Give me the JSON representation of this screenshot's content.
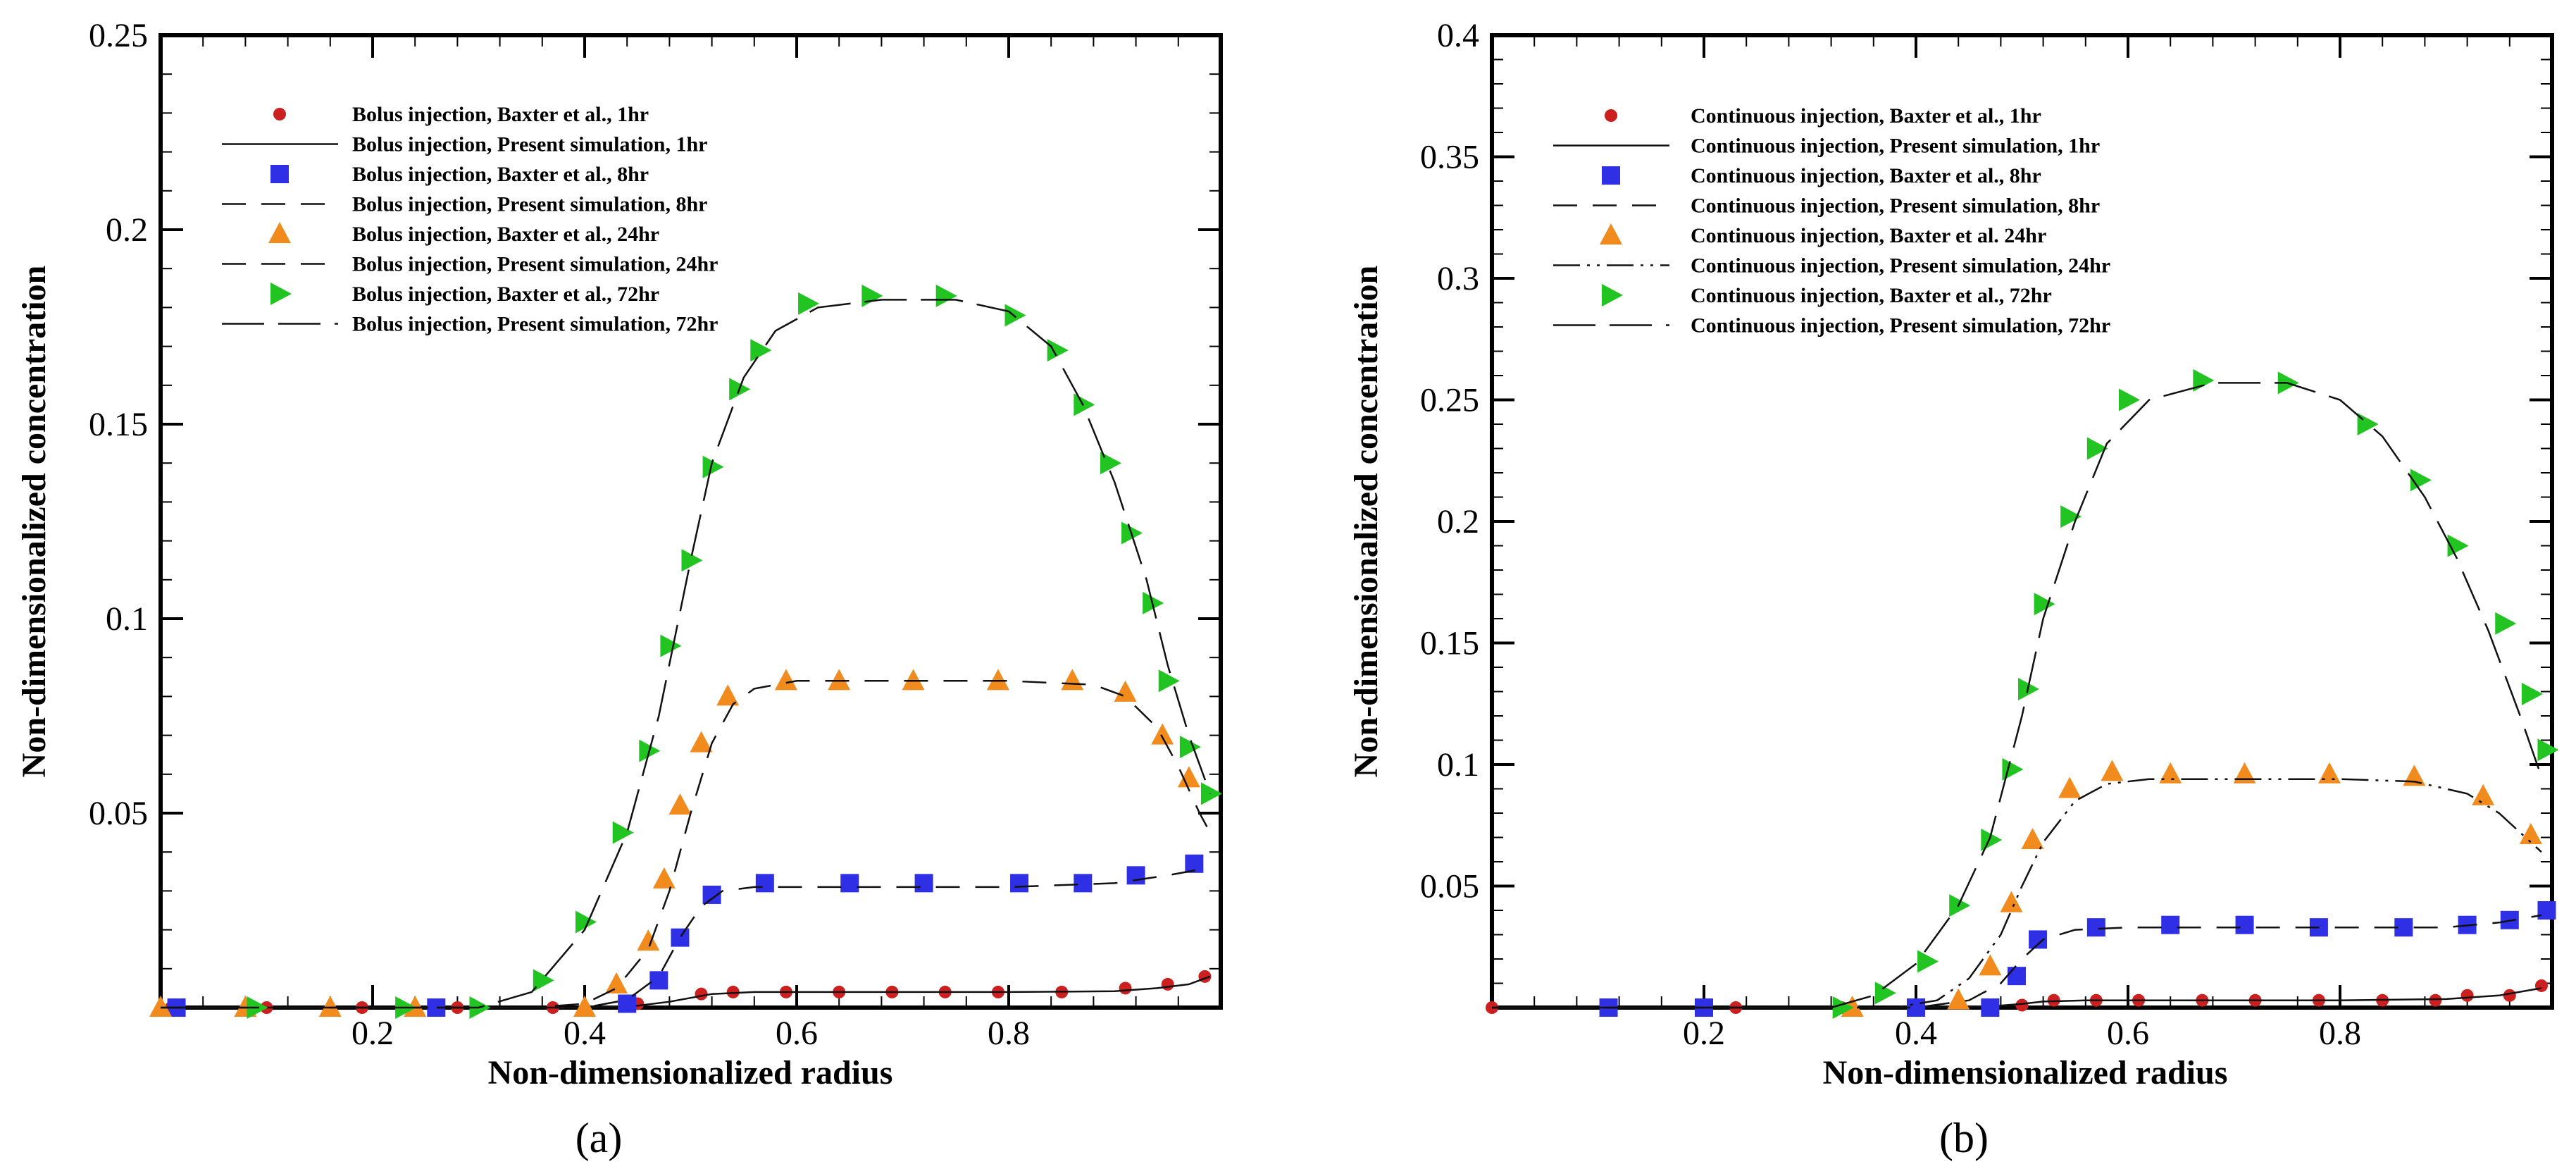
{
  "chart_data": [
    {
      "type": "scatter",
      "panel_label": "(a)",
      "xlabel": "Non-dimensionalized radius",
      "ylabel": "Non-dimensionalized concentration",
      "xlim": [
        0,
        1
      ],
      "ylim": [
        0,
        0.25
      ],
      "xticks": [
        0.2,
        0.4,
        0.6,
        0.8
      ],
      "xtick_labels": [
        "0.2",
        "0.4",
        "0.6",
        "0.8"
      ],
      "yticks": [
        0.05,
        0.1,
        0.15,
        0.2,
        0.25
      ],
      "ytick_labels": [
        "0.05",
        "0.1",
        "0.15",
        "0.2",
        "0.25"
      ],
      "grid": false,
      "legend_position": "top-left",
      "series": [
        {
          "name": "Bolus injection, Baxter et al., 1hr",
          "kind": "markers",
          "marker": "circle",
          "color": "#cc1f1f",
          "x": [
            0.01,
            0.1,
            0.19,
            0.28,
            0.37,
            0.45,
            0.51,
            0.54,
            0.59,
            0.64,
            0.69,
            0.74,
            0.79,
            0.85,
            0.91,
            0.95,
            0.985
          ],
          "y": [
            0.0,
            0.0,
            0.0,
            0.0,
            0.0,
            0.001,
            0.0035,
            0.004,
            0.004,
            0.004,
            0.004,
            0.004,
            0.004,
            0.004,
            0.005,
            0.006,
            0.008
          ]
        },
        {
          "name": "Bolus injection, Present simulation, 1hr",
          "kind": "line",
          "dash": "solid",
          "color": "#111111",
          "x": [
            0.0,
            0.3,
            0.4,
            0.45,
            0.48,
            0.5,
            0.52,
            0.56,
            0.6,
            0.8,
            0.9,
            0.94,
            0.97,
            0.99
          ],
          "y": [
            0.0,
            0.0,
            0.0,
            0.0005,
            0.0015,
            0.0025,
            0.0035,
            0.004,
            0.004,
            0.004,
            0.0042,
            0.005,
            0.006,
            0.008
          ]
        },
        {
          "name": "Bolus injection, Baxter et al., 8hr",
          "kind": "markers",
          "marker": "square",
          "color": "#2f2fe6",
          "x": [
            0.015,
            0.26,
            0.44,
            0.47,
            0.49,
            0.52,
            0.57,
            0.65,
            0.72,
            0.81,
            0.87,
            0.92,
            0.975
          ],
          "y": [
            0.0,
            0.0,
            0.001,
            0.007,
            0.018,
            0.029,
            0.032,
            0.032,
            0.032,
            0.032,
            0.032,
            0.034,
            0.037
          ]
        },
        {
          "name": "Bolus injection, Present simulation, 8hr",
          "kind": "line",
          "dash": "dash",
          "color": "#111111",
          "x": [
            0.0,
            0.3,
            0.4,
            0.44,
            0.47,
            0.49,
            0.51,
            0.53,
            0.56,
            0.6,
            0.8,
            0.9,
            0.95,
            0.99
          ],
          "y": [
            0.0,
            0.0,
            0.0,
            0.002,
            0.008,
            0.018,
            0.026,
            0.03,
            0.031,
            0.031,
            0.031,
            0.032,
            0.034,
            0.036
          ]
        },
        {
          "name": "Bolus injection, Baxter et al., 24hr",
          "kind": "markers",
          "marker": "triangle-up",
          "color": "#f28b1e",
          "x": [
            0.0,
            0.08,
            0.16,
            0.24,
            0.4,
            0.43,
            0.46,
            0.475,
            0.49,
            0.51,
            0.535,
            0.59,
            0.64,
            0.71,
            0.79,
            0.86,
            0.91,
            0.945,
            0.97
          ],
          "y": [
            0.0,
            0.0,
            0.0,
            0.0,
            0.0,
            0.006,
            0.017,
            0.033,
            0.052,
            0.068,
            0.08,
            0.084,
            0.084,
            0.084,
            0.084,
            0.084,
            0.081,
            0.07,
            0.059
          ]
        },
        {
          "name": "Bolus injection, Present simulation, 24hr",
          "kind": "line",
          "dash": "dash",
          "color": "#111111",
          "x": [
            0.0,
            0.35,
            0.4,
            0.43,
            0.46,
            0.48,
            0.5,
            0.52,
            0.54,
            0.56,
            0.6,
            0.7,
            0.8,
            0.88,
            0.91,
            0.94,
            0.96,
            0.98,
            0.99
          ],
          "y": [
            0.0,
            0.0,
            0.001,
            0.005,
            0.015,
            0.03,
            0.05,
            0.068,
            0.078,
            0.082,
            0.084,
            0.084,
            0.084,
            0.083,
            0.08,
            0.072,
            0.062,
            0.05,
            0.045
          ]
        },
        {
          "name": "Bolus injection, Baxter et al., 72hr",
          "kind": "markers",
          "marker": "triangle-right",
          "color": "#21c421",
          "x": [
            0.09,
            0.23,
            0.3,
            0.36,
            0.4,
            0.435,
            0.46,
            0.48,
            0.5,
            0.52,
            0.545,
            0.565,
            0.61,
            0.67,
            0.74,
            0.805,
            0.845,
            0.87,
            0.895,
            0.915,
            0.935,
            0.95,
            0.97,
            0.99
          ],
          "y": [
            0.0,
            0.0,
            0.0,
            0.007,
            0.022,
            0.045,
            0.066,
            0.093,
            0.115,
            0.139,
            0.159,
            0.169,
            0.181,
            0.183,
            0.183,
            0.178,
            0.169,
            0.155,
            0.14,
            0.122,
            0.104,
            0.084,
            0.067,
            0.055
          ]
        },
        {
          "name": "Bolus injection, Present simulation, 72hr",
          "kind": "line",
          "dash": "longdash",
          "color": "#111111",
          "x": [
            0.0,
            0.3,
            0.35,
            0.4,
            0.44,
            0.47,
            0.5,
            0.52,
            0.55,
            0.58,
            0.62,
            0.68,
            0.75,
            0.8,
            0.84,
            0.87,
            0.9,
            0.93,
            0.95,
            0.97,
            0.99
          ],
          "y": [
            0.0,
            0.0,
            0.004,
            0.02,
            0.045,
            0.075,
            0.115,
            0.14,
            0.162,
            0.174,
            0.18,
            0.182,
            0.182,
            0.179,
            0.17,
            0.155,
            0.135,
            0.11,
            0.088,
            0.07,
            0.055
          ]
        }
      ]
    },
    {
      "type": "scatter",
      "panel_label": "(b)",
      "xlabel": "Non-dimensionalized radius",
      "ylabel": "Non-dimensionalized concentration",
      "xlim": [
        0,
        1
      ],
      "ylim": [
        0,
        0.4
      ],
      "xticks": [
        0.2,
        0.4,
        0.6,
        0.8
      ],
      "xtick_labels": [
        "0.2",
        "0.4",
        "0.6",
        "0.8"
      ],
      "yticks": [
        0.05,
        0.1,
        0.15,
        0.2,
        0.25,
        0.3,
        0.35,
        0.4
      ],
      "ytick_labels": [
        "0.05",
        "0.1",
        "0.15",
        "0.2",
        "0.25",
        "0.3",
        "0.35",
        "0.4"
      ],
      "grid": false,
      "legend_position": "top-left",
      "series": [
        {
          "name": "Continuous injection, Baxter et al., 1hr",
          "kind": "markers",
          "marker": "circle",
          "color": "#cc1f1f",
          "x": [
            0.0,
            0.23,
            0.33,
            0.5,
            0.53,
            0.57,
            0.61,
            0.67,
            0.72,
            0.78,
            0.84,
            0.89,
            0.92,
            0.96,
            0.99
          ],
          "y": [
            0.0,
            0.0,
            0.0,
            0.001,
            0.003,
            0.003,
            0.003,
            0.003,
            0.003,
            0.003,
            0.003,
            0.003,
            0.005,
            0.005,
            0.009
          ]
        },
        {
          "name": "Continuous injection, Present simulation, 1hr",
          "kind": "line",
          "dash": "solid",
          "color": "#111111",
          "x": [
            0.0,
            0.4,
            0.47,
            0.5,
            0.52,
            0.56,
            0.6,
            0.8,
            0.9,
            0.95,
            0.99
          ],
          "y": [
            0.0,
            0.0,
            0.0005,
            0.0015,
            0.0025,
            0.003,
            0.003,
            0.003,
            0.0035,
            0.005,
            0.008
          ]
        },
        {
          "name": "Continuous injection, Baxter et al., 8hr",
          "kind": "markers",
          "marker": "square",
          "color": "#2f2fe6",
          "x": [
            0.11,
            0.2,
            0.4,
            0.47,
            0.495,
            0.515,
            0.57,
            0.64,
            0.71,
            0.78,
            0.86,
            0.92,
            0.96,
            0.995
          ],
          "y": [
            0.0,
            0.0,
            0.0,
            0.0,
            0.013,
            0.028,
            0.033,
            0.034,
            0.034,
            0.033,
            0.033,
            0.034,
            0.036,
            0.04
          ]
        },
        {
          "name": "Continuous injection, Present simulation, 8hr",
          "kind": "line",
          "dash": "dash",
          "color": "#111111",
          "x": [
            0.0,
            0.4,
            0.45,
            0.48,
            0.5,
            0.52,
            0.55,
            0.6,
            0.8,
            0.9,
            0.95,
            0.99
          ],
          "y": [
            0.0,
            0.0,
            0.003,
            0.01,
            0.02,
            0.028,
            0.032,
            0.033,
            0.033,
            0.033,
            0.035,
            0.038
          ]
        },
        {
          "name": "Continuous injection, Baxter et al. 24hr",
          "kind": "markers",
          "marker": "triangle-up",
          "color": "#f28b1e",
          "x": [
            0.34,
            0.44,
            0.47,
            0.49,
            0.51,
            0.545,
            0.585,
            0.64,
            0.71,
            0.79,
            0.87,
            0.935,
            0.98
          ],
          "y": [
            0.0,
            0.003,
            0.017,
            0.043,
            0.069,
            0.09,
            0.097,
            0.096,
            0.096,
            0.096,
            0.095,
            0.087,
            0.071
          ]
        },
        {
          "name": "Continuous injection, Present simulation, 24hr",
          "kind": "line",
          "dash": "dashdotdot",
          "color": "#111111",
          "x": [
            0.0,
            0.38,
            0.42,
            0.45,
            0.48,
            0.5,
            0.52,
            0.55,
            0.58,
            0.62,
            0.7,
            0.8,
            0.87,
            0.92,
            0.95,
            0.97,
            0.99
          ],
          "y": [
            0.0,
            0.0,
            0.003,
            0.012,
            0.03,
            0.05,
            0.068,
            0.085,
            0.092,
            0.094,
            0.094,
            0.094,
            0.093,
            0.088,
            0.08,
            0.072,
            0.064
          ]
        },
        {
          "name": "Continuous injection, Baxter et al., 72hr",
          "kind": "markers",
          "marker": "triangle-right",
          "color": "#21c421",
          "x": [
            0.33,
            0.37,
            0.41,
            0.44,
            0.47,
            0.49,
            0.505,
            0.52,
            0.545,
            0.57,
            0.6,
            0.67,
            0.75,
            0.825,
            0.875,
            0.91,
            0.955,
            0.98,
            0.995
          ],
          "y": [
            0.0,
            0.006,
            0.019,
            0.042,
            0.069,
            0.098,
            0.131,
            0.166,
            0.202,
            0.23,
            0.25,
            0.258,
            0.257,
            0.24,
            0.217,
            0.19,
            0.158,
            0.129,
            0.106
          ]
        },
        {
          "name": "Continuous injection, Present simulation, 72hr",
          "kind": "line",
          "dash": "longdash",
          "color": "#111111",
          "x": [
            0.0,
            0.32,
            0.36,
            0.4,
            0.44,
            0.47,
            0.5,
            0.52,
            0.55,
            0.58,
            0.62,
            0.68,
            0.75,
            0.8,
            0.84,
            0.88,
            0.91,
            0.94,
            0.97,
            0.99
          ],
          "y": [
            0.0,
            0.0,
            0.005,
            0.018,
            0.042,
            0.07,
            0.12,
            0.16,
            0.2,
            0.232,
            0.25,
            0.257,
            0.257,
            0.25,
            0.235,
            0.21,
            0.185,
            0.155,
            0.12,
            0.095
          ]
        }
      ]
    }
  ]
}
